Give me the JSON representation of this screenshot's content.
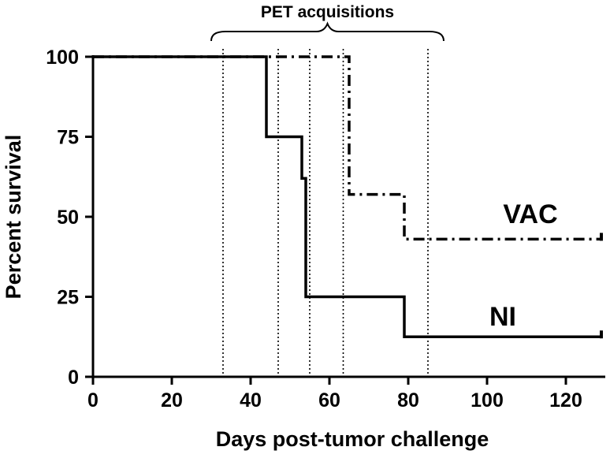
{
  "chart_data": {
    "type": "line",
    "subtype": "kaplan-meier-step",
    "title": "",
    "xlabel": "Days post-tumor challenge",
    "ylabel": "Percent survival",
    "xlim": [
      0,
      130
    ],
    "ylim": [
      0,
      100
    ],
    "xticks": [
      0,
      20,
      40,
      60,
      80,
      100,
      120
    ],
    "yticks": [
      0,
      25,
      50,
      75,
      100
    ],
    "grid": false,
    "series": [
      {
        "name": "VAC",
        "line_style": "dash-dot",
        "points": [
          [
            0,
            100
          ],
          [
            65,
            100
          ],
          [
            65,
            57
          ],
          [
            79,
            57
          ],
          [
            79,
            43
          ],
          [
            129,
            43
          ]
        ]
      },
      {
        "name": "NI",
        "line_style": "solid",
        "points": [
          [
            0,
            100
          ],
          [
            44,
            100
          ],
          [
            44,
            75
          ],
          [
            53,
            75
          ],
          [
            53,
            62
          ],
          [
            54,
            62
          ],
          [
            54,
            25
          ],
          [
            79,
            25
          ],
          [
            79,
            12.5
          ],
          [
            129,
            12.5
          ]
        ]
      }
    ],
    "annotations": {
      "pet_acquisitions": {
        "label": "PET acquisitions",
        "days": [
          33,
          47,
          55,
          63.5,
          85
        ],
        "bracket_range": [
          30,
          89
        ]
      }
    }
  }
}
